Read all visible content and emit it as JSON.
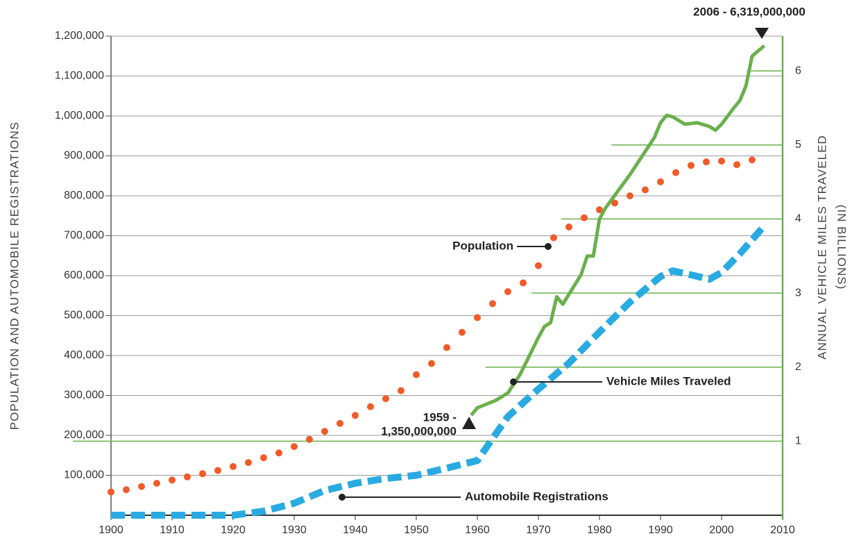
{
  "chart_data": {
    "type": "line",
    "y_label": "POPULATION AND AUTOMOBILE REGISTRATIONS",
    "y2_label": [
      "ANNUAL VEHICLE MILES TRAVELED",
      "(IN BILLIONS)"
    ],
    "xlim": [
      1900,
      2010
    ],
    "xticks": [
      1900,
      1910,
      1920,
      1930,
      1940,
      1950,
      1960,
      1970,
      1980,
      1990,
      2000,
      2010
    ],
    "ylim": [
      0,
      1200000
    ],
    "yticks": [
      {
        "value": 100000,
        "label": "100,000"
      },
      {
        "value": 200000,
        "label": "200,000"
      },
      {
        "value": 300000,
        "label": "300,000"
      },
      {
        "value": 400000,
        "label": "400,000"
      },
      {
        "value": 500000,
        "label": "500,000"
      },
      {
        "value": 600000,
        "label": "600,000"
      },
      {
        "value": 700000,
        "label": "700,000"
      },
      {
        "value": 800000,
        "label": "800,000"
      },
      {
        "value": 900000,
        "label": "900,000"
      },
      {
        "value": 1000000,
        "label": "1,000,000"
      },
      {
        "value": 1100000,
        "label": "1,100,000"
      },
      {
        "value": 1200000,
        "label": "1,200,000"
      }
    ],
    "y2lim": [
      0,
      6.47
    ],
    "y2ticks": [
      1,
      2,
      3,
      4,
      5,
      6
    ],
    "grid": true,
    "series": [
      {
        "name": "Population",
        "color": "#f15a29",
        "style": "dotted",
        "x": [
          1900,
          1902.5,
          1905,
          1907.5,
          1910,
          1912.5,
          1915,
          1917.5,
          1920,
          1922.5,
          1925,
          1927.5,
          1930,
          1932.5,
          1935,
          1937.5,
          1940,
          1942.5,
          1945,
          1947.5,
          1950,
          1952.5,
          1955,
          1957.5,
          1960,
          1962.5,
          1965,
          1967.5,
          1970,
          1972.5,
          1975,
          1977.5,
          1980,
          1982.5,
          1985,
          1987.5,
          1990,
          1992.5,
          1995,
          1997.5,
          2000,
          2002.5,
          2005
        ],
        "values": [
          58000,
          64000,
          72000,
          80000,
          88000,
          96000,
          104000,
          112000,
          122000,
          132000,
          144000,
          156000,
          172000,
          190000,
          210000,
          230000,
          250000,
          272000,
          292000,
          312000,
          352000,
          380000,
          420000,
          458000,
          495000,
          530000,
          560000,
          582000,
          625000,
          695000,
          722000,
          745000,
          765000,
          782000,
          800000,
          815000,
          835000,
          858000,
          876000,
          885000,
          887000,
          878000,
          890000
        ]
      },
      {
        "name": "Automobile Registrations",
        "color": "#29abe2",
        "style": "dashed",
        "x": [
          1900,
          1920,
          1925,
          1930,
          1935,
          1940,
          1945,
          1950,
          1955,
          1960,
          1965,
          1970,
          1975,
          1980,
          1985,
          1990,
          1992,
          1995,
          1998,
          2000,
          2003,
          2007
        ],
        "values": [
          0,
          0,
          10000,
          30000,
          62000,
          80000,
          92000,
          100000,
          118000,
          137000,
          247000,
          316000,
          381000,
          459000,
          534000,
          598000,
          612000,
          602000,
          591000,
          608000,
          655000,
          725000
        ]
      },
      {
        "name": "Vehicle Miles Traveled",
        "color": "#6ab04c",
        "style": "solid",
        "axis": "y2",
        "x": [
          1959,
          1960,
          1963,
          1965,
          1967,
          1970,
          1971,
          1972,
          1973,
          1974,
          1977,
          1978,
          1979,
          1980,
          1981,
          1985,
          1989,
          1990,
          1991,
          1992,
          1994,
          1996,
          1998,
          1999,
          2000,
          2002,
          2003,
          2004,
          2005,
          2007
        ],
        "values": [
          1.35,
          1.45,
          1.55,
          1.65,
          1.9,
          2.4,
          2.55,
          2.6,
          2.95,
          2.85,
          3.25,
          3.5,
          3.5,
          4.0,
          4.15,
          4.6,
          5.1,
          5.3,
          5.4,
          5.38,
          5.28,
          5.3,
          5.25,
          5.2,
          5.28,
          5.5,
          5.6,
          5.8,
          6.2,
          6.34
        ]
      }
    ],
    "annotations": [
      "2006 - 6,319,000,000",
      "1959 -",
      "1,350,000,000",
      "Population",
      "Vehicle Miles Traveled",
      "Automobile Registrations"
    ]
  }
}
